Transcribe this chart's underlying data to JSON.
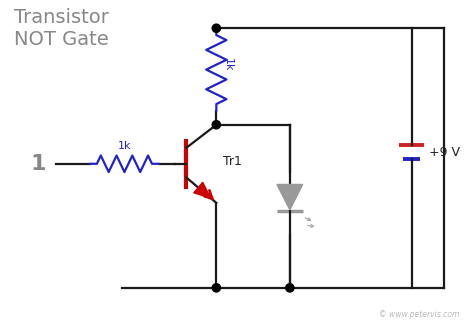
{
  "title": "Transistor\nNOT Gate",
  "title_color": "#888888",
  "background_color": "#ffffff",
  "wire_color": "#1a1a1a",
  "resistor_color": "#2222cc",
  "transistor_color": "#cc0000",
  "led_color": "#999999",
  "label_1k_top": "1k",
  "label_1k_base": "1k",
  "label_tr1": "Tr1",
  "label_9v": "+9 V",
  "label_input": "1",
  "watermark": "© www.petervis.com",
  "node_color": "#000000",
  "battery_red": "#cc2222",
  "battery_blue": "#2222cc",
  "xlim": [
    0,
    10
  ],
  "ylim": [
    0,
    7
  ]
}
